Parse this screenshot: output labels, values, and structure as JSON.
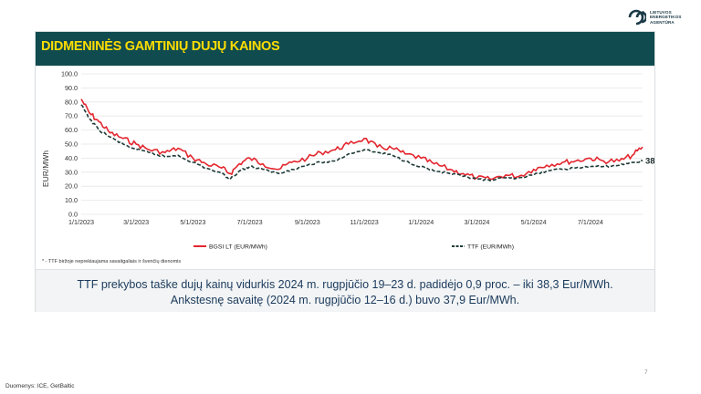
{
  "logo": {
    "text": "LIETUVOS\nENERGETIKOS\nAGENTŪRA"
  },
  "title": "DIDMENINĖS GAMTINIŲ DUJŲ KAINOS",
  "footnote": "* - TTF biržoje neprekiaujama savaitgaliais ir švenčių dienomis",
  "info": {
    "line1": "TTF prekybos taške dujų kainų vidurkis 2024 m. rugpjūčio 19–23 d. padidėjo 0,9 proc. – iki 38,3 Eur/MWh.",
    "line2": "Ankstesnę savaitę (2024 m. rugpjūčio 12–16 d.) buvo 37,9 Eur/MWh."
  },
  "source": "Duomenys: ICE, GetBaltic",
  "page_number": "7",
  "colors": {
    "bgsi": "#e3262e",
    "ttf": "#1f3b37",
    "title_bar": "#0f4b4f",
    "title_text": "#ffdd00"
  },
  "chart_data": {
    "type": "line",
    "title": "",
    "xlabel": "",
    "ylabel": "EUR/MWh",
    "ylim": [
      0,
      100
    ],
    "x_range": [
      "2023-01-01",
      "2024-08-26"
    ],
    "y_ticks": [
      "0.0",
      "10.0",
      "20.0",
      "30.0",
      "40.0",
      "50.0",
      "60.0",
      "70.0",
      "80.0",
      "90.0",
      "100.0"
    ],
    "x_ticks": [
      "1/1/2023",
      "3/1/2023",
      "5/1/2023",
      "7/1/2023",
      "9/1/2023",
      "11/1/2023",
      "1/1/2024",
      "3/1/2024",
      "5/1/2024",
      "7/1/2024"
    ],
    "x_tick_dates": [
      "2023-01-01",
      "2023-03-01",
      "2023-05-01",
      "2023-07-01",
      "2023-09-01",
      "2023-11-01",
      "2024-01-01",
      "2024-03-01",
      "2024-05-01",
      "2024-07-01"
    ],
    "grid": "horizontal",
    "legend_position": "bottom",
    "end_label": "38.1",
    "series": [
      {
        "name": "BGSI LT (EUR/MWh)",
        "style": "solid",
        "x": [
          "2023-01-01",
          "2023-01-10",
          "2023-01-20",
          "2023-02-01",
          "2023-02-15",
          "2023-03-01",
          "2023-03-15",
          "2023-04-01",
          "2023-04-15",
          "2023-05-01",
          "2023-05-15",
          "2023-06-01",
          "2023-06-10",
          "2023-06-20",
          "2023-07-01",
          "2023-07-15",
          "2023-08-01",
          "2023-08-15",
          "2023-09-01",
          "2023-09-15",
          "2023-10-01",
          "2023-10-15",
          "2023-11-01",
          "2023-11-15",
          "2023-12-01",
          "2023-12-15",
          "2024-01-01",
          "2024-01-15",
          "2024-02-01",
          "2024-02-15",
          "2024-03-01",
          "2024-03-15",
          "2024-04-01",
          "2024-04-15",
          "2024-05-01",
          "2024-05-15",
          "2024-06-01",
          "2024-06-15",
          "2024-07-01",
          "2024-07-15",
          "2024-08-01",
          "2024-08-15",
          "2024-08-26"
        ],
        "values": [
          82,
          72,
          66,
          58,
          54,
          50,
          46,
          44,
          47,
          40,
          36,
          33,
          29,
          36,
          40,
          36,
          32,
          37,
          40,
          44,
          46,
          50,
          54,
          48,
          47,
          43,
          40,
          36,
          32,
          29,
          26,
          25,
          28,
          27,
          32,
          35,
          37,
          38,
          40,
          38,
          38,
          42,
          48
        ]
      },
      {
        "name": "TTF (EUR/MWh)",
        "style": "dashed",
        "x": [
          "2023-01-01",
          "2023-01-10",
          "2023-01-20",
          "2023-02-01",
          "2023-02-15",
          "2023-03-01",
          "2023-03-15",
          "2023-04-01",
          "2023-04-15",
          "2023-05-01",
          "2023-05-15",
          "2023-06-01",
          "2023-06-10",
          "2023-06-20",
          "2023-07-01",
          "2023-07-15",
          "2023-08-01",
          "2023-08-15",
          "2023-09-01",
          "2023-09-15",
          "2023-10-01",
          "2023-10-15",
          "2023-11-01",
          "2023-11-15",
          "2023-12-01",
          "2023-12-15",
          "2024-01-01",
          "2024-01-15",
          "2024-02-01",
          "2024-02-15",
          "2024-03-01",
          "2024-03-15",
          "2024-04-01",
          "2024-04-15",
          "2024-05-01",
          "2024-05-15",
          "2024-06-01",
          "2024-06-15",
          "2024-07-01",
          "2024-07-15",
          "2024-08-01",
          "2024-08-15",
          "2024-08-26"
        ],
        "values": [
          78,
          68,
          60,
          55,
          50,
          46,
          44,
          41,
          42,
          37,
          33,
          29,
          25,
          31,
          34,
          32,
          29,
          32,
          35,
          37,
          38,
          43,
          46,
          44,
          42,
          38,
          34,
          31,
          29,
          27,
          25,
          24,
          26,
          26,
          28,
          31,
          32,
          33,
          34,
          34,
          35,
          37,
          38
        ]
      }
    ]
  }
}
